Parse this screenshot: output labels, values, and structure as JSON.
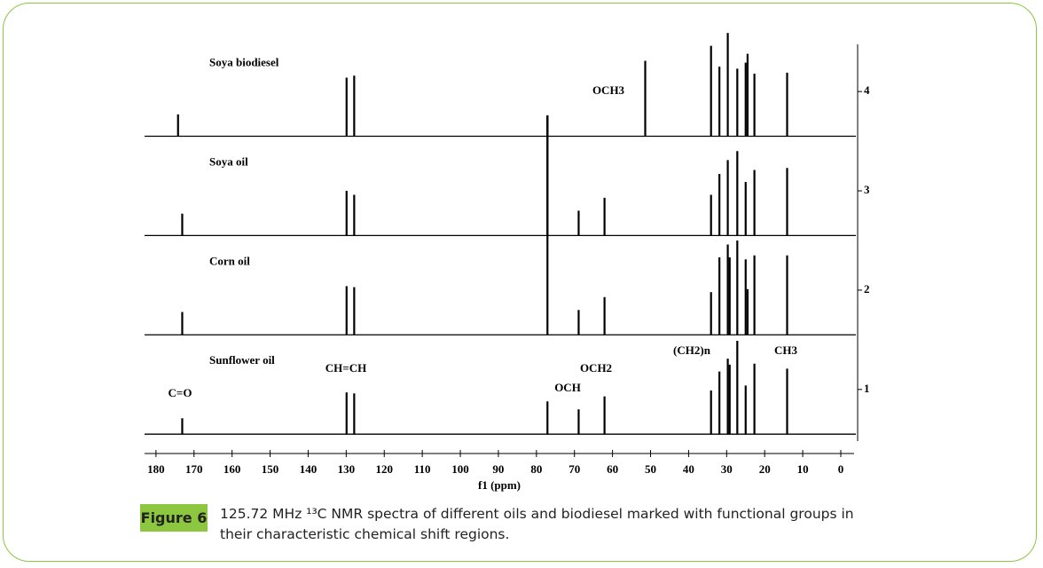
{
  "chart_data": {
    "type": "spectrum",
    "x_label": "f1 (ppm)",
    "xlim": [
      183,
      -3.5
    ],
    "xticks": [
      180,
      170,
      160,
      150,
      140,
      130,
      120,
      110,
      100,
      90,
      80,
      70,
      60,
      50,
      40,
      30,
      20,
      10,
      0
    ],
    "ylim": [
      0.48,
      4.6
    ],
    "yticks": [
      1,
      2,
      3,
      4
    ],
    "color": "#000000",
    "series": [
      {
        "name": "Sunflower oil",
        "baseline": 0.55,
        "x": [
          173.1,
          129.9,
          127.9,
          77.1,
          68.9,
          62.1,
          34.1,
          31.9,
          29.7,
          29.2,
          27.2,
          25.0,
          22.7,
          14.1
        ],
        "values": [
          0.71,
          0.97,
          0.96,
          0.88,
          0.8,
          0.93,
          0.99,
          1.18,
          1.31,
          1.25,
          1.49,
          1.04,
          1.26,
          1.21
        ]
      },
      {
        "name": "Corn oil",
        "baseline": 1.55,
        "x": [
          173.1,
          129.9,
          127.9,
          77.1,
          68.9,
          62.1,
          34.1,
          31.9,
          29.7,
          29.2,
          27.2,
          25.0,
          24.5,
          22.7,
          14.1
        ],
        "values": [
          1.78,
          2.04,
          2.03,
          3.76,
          1.8,
          1.93,
          1.98,
          2.33,
          2.46,
          2.33,
          2.5,
          2.31,
          2.01,
          2.35,
          2.35
        ]
      },
      {
        "name": "Soya oil",
        "baseline": 2.55,
        "x": [
          173.1,
          129.9,
          127.9,
          77.1,
          68.9,
          62.1,
          34.1,
          31.9,
          29.7,
          27.2,
          25.0,
          22.7,
          14.1
        ],
        "values": [
          2.77,
          3.0,
          2.96,
          3.76,
          2.8,
          2.93,
          2.96,
          3.17,
          3.31,
          3.4,
          3.09,
          3.21,
          3.23
        ]
      },
      {
        "name": "Soya biodiesel",
        "baseline": 3.55,
        "x": [
          174.2,
          129.9,
          127.9,
          77.1,
          51.4,
          34.1,
          31.9,
          29.7,
          27.2,
          25.0,
          24.5,
          22.7,
          14.1
        ],
        "values": [
          3.77,
          4.14,
          4.16,
          3.76,
          4.31,
          4.46,
          4.25,
          4.59,
          4.23,
          4.29,
          4.38,
          4.18,
          4.19
        ]
      }
    ],
    "annotations": [
      "C=O",
      "CH=CH",
      "OCH",
      "OCH2",
      "(CH2)n",
      "CH3",
      "OCH3"
    ]
  },
  "caption": {
    "label": "Figure 6",
    "text": "125.72 MHz ¹³C NMR spectra of different oils and biodiesel marked with functional groups in their characteristic chemical shift regions."
  }
}
